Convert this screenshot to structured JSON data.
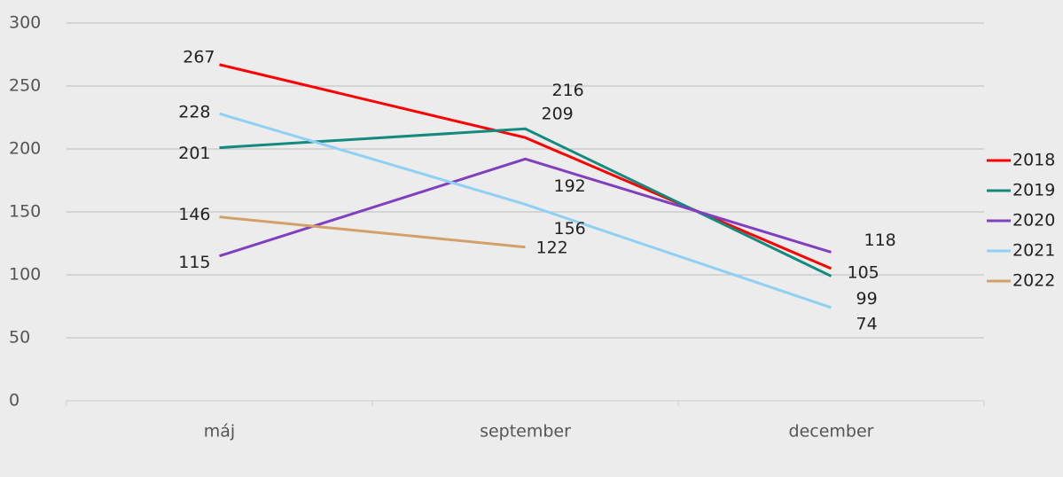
{
  "chart_data": {
    "type": "line",
    "categories": [
      "máj",
      "september",
      "december"
    ],
    "series": [
      {
        "name": "2018",
        "color": "#ff0000",
        "values": [
          267,
          209,
          105
        ]
      },
      {
        "name": "2019",
        "color": "#138a7e",
        "values": [
          201,
          216,
          99
        ]
      },
      {
        "name": "2020",
        "color": "#7f3fbf",
        "values": [
          115,
          192,
          118
        ]
      },
      {
        "name": "2021",
        "color": "#8fd0f5",
        "values": [
          228,
          156,
          74
        ]
      },
      {
        "name": "2022",
        "color": "#d4a06a",
        "values": [
          146,
          122,
          null
        ]
      }
    ],
    "ylim": [
      0,
      300
    ],
    "yticks": [
      0,
      50,
      100,
      150,
      200,
      250,
      300
    ],
    "grid": true,
    "legend": "right"
  }
}
